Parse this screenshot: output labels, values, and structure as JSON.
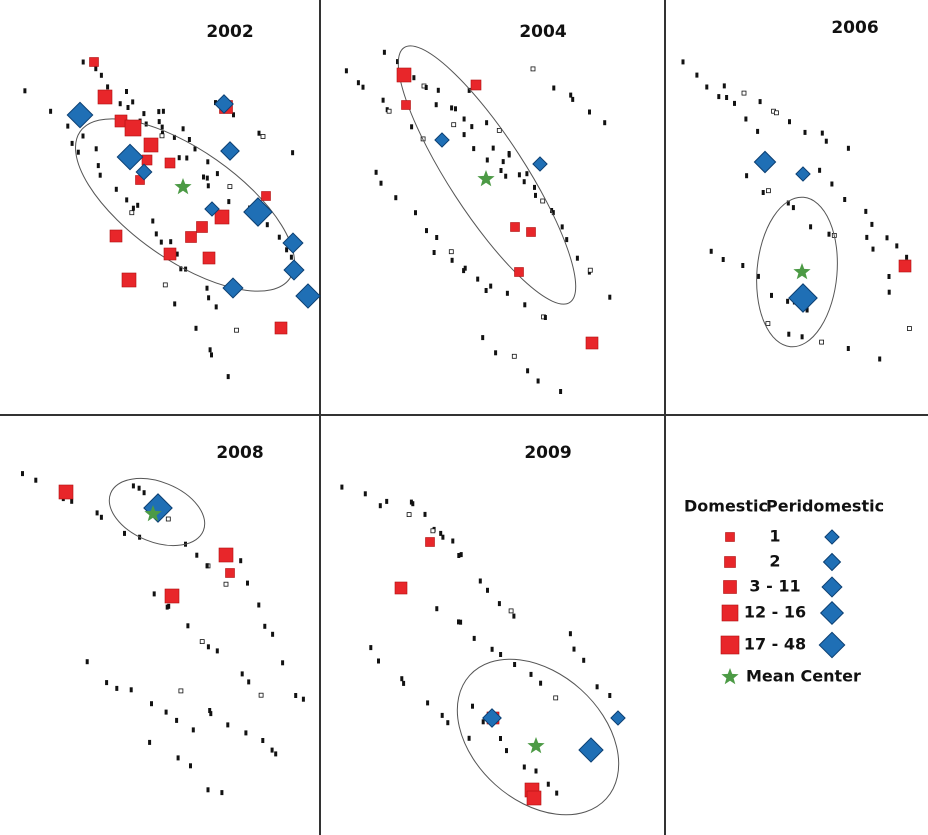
{
  "panels": [
    {
      "title": "2002"
    },
    {
      "title": "2004"
    },
    {
      "title": "2006"
    },
    {
      "title": "2008"
    },
    {
      "title": "2009"
    }
  ],
  "legend": {
    "domestic": "Domestic",
    "peridomestic": "Peridomestic",
    "classes": [
      "1",
      "2",
      "3 - 11",
      "12 - 16",
      "17 - 48"
    ],
    "mean_center": "Mean Center"
  }
}
